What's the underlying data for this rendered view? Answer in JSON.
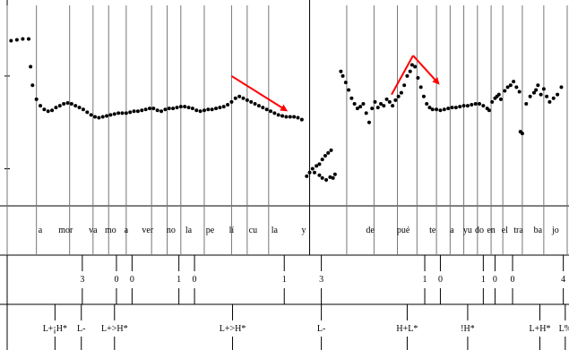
{
  "chart_data": {
    "type": "scatter",
    "title": "",
    "xlabel": "",
    "ylabel": "",
    "xlim": [
      0,
      2.87
    ],
    "ylim": [
      60,
      280
    ],
    "y_ticks": [
      100,
      200
    ],
    "grid": "vertical segment boundaries",
    "legend": "none",
    "series": [
      {
        "name": "",
        "color": "#000000",
        "points": [
          [
            0.02,
            238
          ],
          [
            0.05,
            239
          ],
          [
            0.08,
            240
          ],
          [
            0.11,
            240
          ],
          [
            0.12,
            210
          ],
          [
            0.13,
            190
          ],
          [
            0.15,
            175
          ],
          [
            0.17,
            168
          ],
          [
            0.19,
            164
          ],
          [
            0.21,
            162
          ],
          [
            0.23,
            163
          ],
          [
            0.25,
            166
          ],
          [
            0.27,
            168
          ],
          [
            0.29,
            170
          ],
          [
            0.31,
            171
          ],
          [
            0.33,
            170
          ],
          [
            0.35,
            168
          ],
          [
            0.37,
            166
          ],
          [
            0.39,
            164
          ],
          [
            0.41,
            161
          ],
          [
            0.43,
            158
          ],
          [
            0.45,
            156
          ],
          [
            0.47,
            155
          ],
          [
            0.49,
            156
          ],
          [
            0.51,
            157
          ],
          [
            0.53,
            158
          ],
          [
            0.55,
            159
          ],
          [
            0.57,
            160
          ],
          [
            0.59,
            160
          ],
          [
            0.61,
            160
          ],
          [
            0.63,
            161
          ],
          [
            0.65,
            162
          ],
          [
            0.67,
            162
          ],
          [
            0.69,
            163
          ],
          [
            0.71,
            164
          ],
          [
            0.73,
            165
          ],
          [
            0.75,
            165
          ],
          [
            0.77,
            163
          ],
          [
            0.79,
            162
          ],
          [
            0.81,
            164
          ],
          [
            0.83,
            165
          ],
          [
            0.85,
            165
          ],
          [
            0.87,
            166
          ],
          [
            0.89,
            167
          ],
          [
            0.91,
            167
          ],
          [
            0.93,
            166
          ],
          [
            0.95,
            165
          ],
          [
            0.97,
            163
          ],
          [
            0.99,
            162
          ],
          [
            1.01,
            163
          ],
          [
            1.03,
            164
          ],
          [
            1.05,
            164
          ],
          [
            1.07,
            165
          ],
          [
            1.09,
            166
          ],
          [
            1.11,
            167
          ],
          [
            1.13,
            169
          ],
          [
            1.15,
            172
          ],
          [
            1.17,
            176
          ],
          [
            1.19,
            178
          ],
          [
            1.21,
            176
          ],
          [
            1.23,
            174
          ],
          [
            1.25,
            172
          ],
          [
            1.27,
            170
          ],
          [
            1.29,
            168
          ],
          [
            1.31,
            166
          ],
          [
            1.33,
            164
          ],
          [
            1.35,
            162
          ],
          [
            1.37,
            160
          ],
          [
            1.39,
            158
          ],
          [
            1.41,
            157
          ],
          [
            1.43,
            156
          ],
          [
            1.45,
            156
          ],
          [
            1.47,
            156
          ],
          [
            1.49,
            155
          ],
          [
            1.51,
            153
          ],
          [
            1.535,
            92
          ],
          [
            1.55,
            96
          ],
          [
            1.565,
            100
          ],
          [
            1.575,
            96
          ],
          [
            1.585,
            103
          ],
          [
            1.6,
            105
          ],
          [
            1.615,
            110
          ],
          [
            1.63,
            114
          ],
          [
            1.645,
            117
          ],
          [
            1.66,
            120
          ],
          [
            1.6,
            93
          ],
          [
            1.615,
            90
          ],
          [
            1.635,
            88
          ],
          [
            1.655,
            91
          ],
          [
            1.67,
            90
          ],
          [
            1.68,
            94
          ],
          [
            1.71,
            205
          ],
          [
            1.72,
            200
          ],
          [
            1.735,
            193
          ],
          [
            1.75,
            185
          ],
          [
            1.765,
            176
          ],
          [
            1.78,
            170
          ],
          [
            1.795,
            165
          ],
          [
            1.81,
            167
          ],
          [
            1.825,
            170
          ],
          [
            1.84,
            160
          ],
          [
            1.855,
            150
          ],
          [
            1.87,
            165
          ],
          [
            1.885,
            172
          ],
          [
            1.9,
            166
          ],
          [
            1.915,
            170
          ],
          [
            1.93,
            168
          ],
          [
            1.945,
            175
          ],
          [
            1.96,
            172
          ],
          [
            1.975,
            168
          ],
          [
            1.99,
            174
          ],
          [
            2.005,
            178
          ],
          [
            2.02,
            182
          ],
          [
            2.035,
            190
          ],
          [
            2.05,
            200
          ],
          [
            2.065,
            205
          ],
          [
            2.075,
            212
          ],
          [
            2.09,
            210
          ],
          [
            2.105,
            198
          ],
          [
            2.12,
            188
          ],
          [
            2.135,
            178
          ],
          [
            2.15,
            170
          ],
          [
            2.165,
            166
          ],
          [
            2.18,
            164
          ],
          [
            2.2,
            164
          ],
          [
            2.22,
            163
          ],
          [
            2.24,
            164
          ],
          [
            2.26,
            165
          ],
          [
            2.28,
            166
          ],
          [
            2.3,
            166
          ],
          [
            2.32,
            167
          ],
          [
            2.34,
            168
          ],
          [
            2.36,
            168
          ],
          [
            2.38,
            169
          ],
          [
            2.4,
            170
          ],
          [
            2.42,
            170
          ],
          [
            2.44,
            168
          ],
          [
            2.46,
            165
          ],
          [
            2.47,
            163
          ],
          [
            2.485,
            172
          ],
          [
            2.5,
            176
          ],
          [
            2.51,
            178
          ],
          [
            2.52,
            180
          ],
          [
            2.53,
            175
          ],
          [
            2.55,
            184
          ],
          [
            2.565,
            188
          ],
          [
            2.58,
            190
          ],
          [
            2.595,
            194
          ],
          [
            2.61,
            188
          ],
          [
            2.625,
            183
          ],
          [
            2.63,
            140
          ],
          [
            2.64,
            138
          ],
          [
            2.66,
            170
          ],
          [
            2.68,
            178
          ],
          [
            2.7,
            182
          ],
          [
            2.71,
            185
          ],
          [
            2.72,
            190
          ],
          [
            2.735,
            180
          ],
          [
            2.75,
            186
          ],
          [
            2.765,
            178
          ],
          [
            2.78,
            172
          ],
          [
            2.8,
            176
          ],
          [
            2.82,
            180
          ],
          [
            2.84,
            188
          ]
        ]
      }
    ],
    "annotations": [
      {
        "type": "arrow",
        "color": "#ff0000",
        "from": [
          1.15,
          200
        ],
        "to": [
          1.43,
          163
        ]
      },
      {
        "type": "arrow",
        "color": "#ff0000",
        "from": [
          1.97,
          180
        ],
        "to": [
          2.08,
          222
        ]
      },
      {
        "type": "arrow",
        "color": "#ff0000",
        "from": [
          2.08,
          222
        ],
        "to": [
          2.21,
          192
        ]
      }
    ],
    "tiers": [
      {
        "name": "",
        "type": "interval",
        "boundaries": [
          0.0,
          0.15,
          0.32,
          0.44,
          0.52,
          0.61,
          0.74,
          0.82,
          0.89,
          1.01,
          1.15,
          1.23,
          1.34,
          1.55,
          1.74,
          1.88,
          2.0,
          2.1,
          2.2,
          2.27,
          2.34,
          2.41,
          2.48,
          2.54,
          2.64,
          2.75,
          2.87
        ],
        "labels": [
          "a",
          "mor",
          "va",
          "mo",
          "a",
          "ver",
          "no",
          "la",
          "pe",
          "lí",
          "cu",
          "la",
          "y",
          "",
          "de",
          "pué",
          "te",
          "a",
          "yu",
          "do",
          "en",
          "el",
          "tra",
          "ba",
          "jo"
        ],
        "label_x": [
          0.17,
          0.3,
          0.44,
          0.53,
          0.61,
          0.72,
          0.84,
          0.93,
          1.04,
          1.15,
          1.26,
          1.37,
          1.52,
          1.64,
          1.86,
          2.03,
          2.18,
          2.28,
          2.36,
          2.42,
          2.48,
          2.55,
          2.62,
          2.72,
          2.81
        ]
      },
      {
        "name": "",
        "type": "point",
        "points": [
          {
            "x": 0.385,
            "label": "3"
          },
          {
            "x": 0.56,
            "label": "0"
          },
          {
            "x": 0.64,
            "label": "0"
          },
          {
            "x": 0.88,
            "label": "1"
          },
          {
            "x": 0.96,
            "label": "0"
          },
          {
            "x": 1.42,
            "label": "1"
          },
          {
            "x": 1.61,
            "label": "3"
          },
          {
            "x": 2.14,
            "label": "1"
          },
          {
            "x": 2.22,
            "label": "0"
          },
          {
            "x": 2.44,
            "label": "1"
          },
          {
            "x": 2.5,
            "label": "0"
          },
          {
            "x": 2.59,
            "label": "0"
          },
          {
            "x": 2.85,
            "label": "4"
          }
        ]
      },
      {
        "name": "",
        "type": "point",
        "points": [
          {
            "x": 0.245,
            "label": "L+¡H*"
          },
          {
            "x": 0.38,
            "label": "L-"
          },
          {
            "x": 0.55,
            "label": "L+>H*"
          },
          {
            "x": 1.155,
            "label": "L+>H*"
          },
          {
            "x": 1.61,
            "label": "L-"
          },
          {
            "x": 2.05,
            "label": "H+L*"
          },
          {
            "x": 2.36,
            "label": "!H*"
          },
          {
            "x": 2.73,
            "label": "L+H*"
          },
          {
            "x": 2.86,
            "label": "L%"
          }
        ]
      }
    ]
  }
}
